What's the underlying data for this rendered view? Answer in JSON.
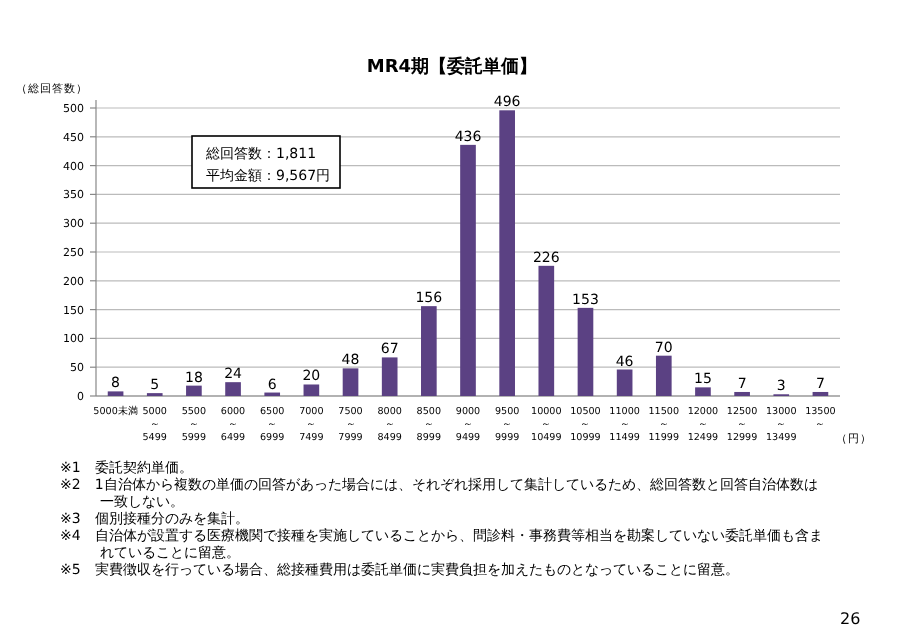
{
  "chart_data": {
    "type": "bar",
    "title": "MR4期【委託単価】",
    "ylabel": "（総回答数）",
    "xlabel": "（円）",
    "categories": [
      "5000未満",
      "5000～5499",
      "5500～5999",
      "6000～6499",
      "6500～6999",
      "7000～7499",
      "7500～7999",
      "8000～8499",
      "8500～8999",
      "9000～9499",
      "9500～9999",
      "10000～10499",
      "10500～10999",
      "11000～11499",
      "11500～11999",
      "12000～12499",
      "12500～12999",
      "13000～13499",
      "13500～"
    ],
    "values": [
      8,
      5,
      18,
      24,
      6,
      20,
      48,
      67,
      156,
      436,
      496,
      226,
      153,
      46,
      70,
      15,
      7,
      3,
      7
    ],
    "color": "#5b4183",
    "data_labels": true,
    "grid": "y",
    "ylim": [
      0,
      500
    ],
    "yticks": [
      0,
      50,
      100,
      150,
      200,
      250,
      300,
      350,
      400,
      450,
      500
    ],
    "annotations": [
      "総回答数：1,811",
      "平均金額：9,567円",
      "※1　委託契約単価。",
      "※2　1自治体から複数の単価の回答があった場合には、それぞれ採用して集計しているため、総回答数と回答自治体数は一致しない。",
      "※3　個別接種分のみを集計。",
      "※4　自治体が設置する医療機関で接種を実施していることから、問診料・事務費等相当を勘案していない委託単価も含まれていることに留意。",
      "※5　実費徴収を行っている場合、総接種費用は委託単価に実費負担を加えたものとなっていることに留意。",
      "26"
    ]
  }
}
